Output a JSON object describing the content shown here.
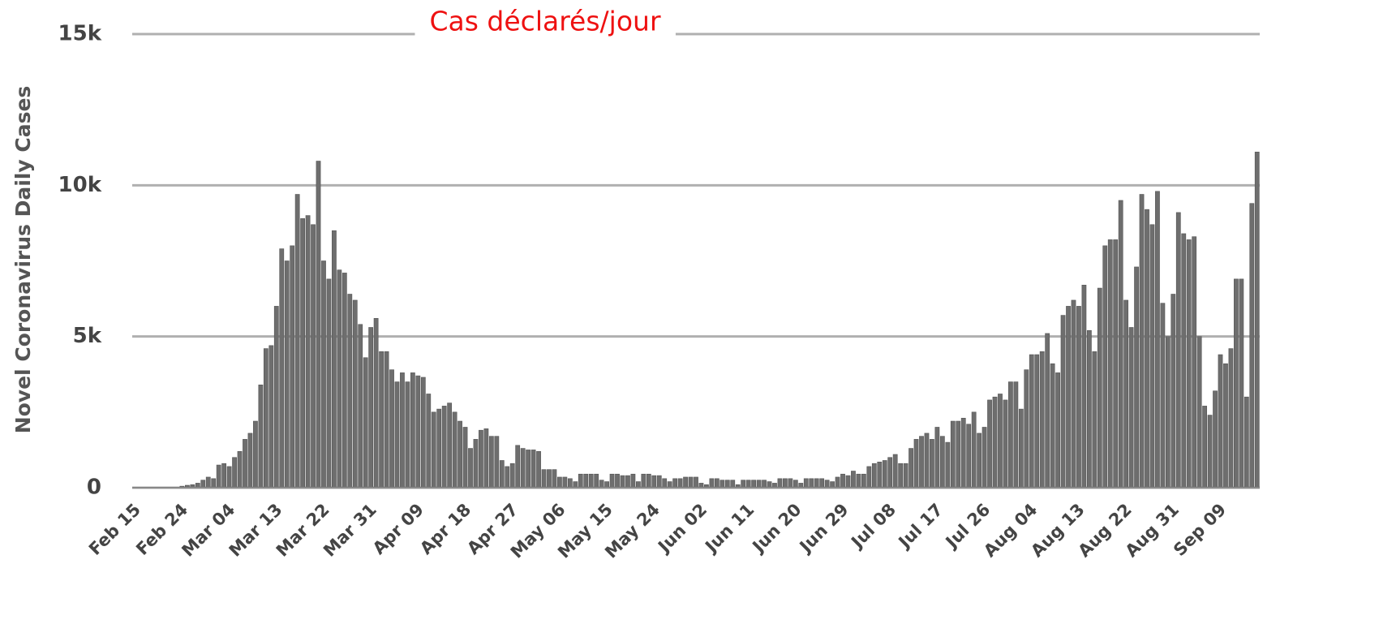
{
  "chart_data": {
    "type": "bar",
    "title": "Cas déclarés/jour",
    "y_label": "Novel Coronavirus Daily Cases",
    "categories": [
      "Feb 15",
      null,
      null,
      null,
      null,
      null,
      null,
      null,
      null,
      "Feb 24",
      null,
      null,
      null,
      null,
      null,
      null,
      null,
      null,
      "Mar 04",
      null,
      null,
      null,
      null,
      null,
      null,
      null,
      null,
      "Mar 13",
      null,
      null,
      null,
      null,
      null,
      null,
      null,
      null,
      "Mar 22",
      null,
      null,
      null,
      null,
      null,
      null,
      null,
      null,
      "Mar 31",
      null,
      null,
      null,
      null,
      null,
      null,
      null,
      null,
      "Apr 09",
      null,
      null,
      null,
      null,
      null,
      null,
      null,
      null,
      "Apr 18",
      null,
      null,
      null,
      null,
      null,
      null,
      null,
      null,
      "Apr 27",
      null,
      null,
      null,
      null,
      null,
      null,
      null,
      null,
      "May 06",
      null,
      null,
      null,
      null,
      null,
      null,
      null,
      null,
      "May 15",
      null,
      null,
      null,
      null,
      null,
      null,
      null,
      null,
      "May 24",
      null,
      null,
      null,
      null,
      null,
      null,
      null,
      null,
      "Jun 02",
      null,
      null,
      null,
      null,
      null,
      null,
      null,
      null,
      "Jun 11",
      null,
      null,
      null,
      null,
      null,
      null,
      null,
      null,
      "Jun 20",
      null,
      null,
      null,
      null,
      null,
      null,
      null,
      null,
      "Jun 29",
      null,
      null,
      null,
      null,
      null,
      null,
      null,
      null,
      "Jul 08",
      null,
      null,
      null,
      null,
      null,
      null,
      null,
      null,
      "Jul 17",
      null,
      null,
      null,
      null,
      null,
      null,
      null,
      null,
      "Jul 26",
      null,
      null,
      null,
      null,
      null,
      null,
      null,
      null,
      "Aug 04",
      null,
      null,
      null,
      null,
      null,
      null,
      null,
      null,
      "Aug 13",
      null,
      null,
      null,
      null,
      null,
      null,
      null,
      null,
      "Aug 22",
      null,
      null,
      null,
      null,
      null,
      null,
      null,
      null,
      "Aug 31",
      null,
      null,
      null,
      null,
      null,
      null,
      null,
      null,
      "Sep 09",
      null,
      null,
      null,
      null,
      null,
      null,
      null
    ],
    "values": [
      0,
      0,
      0,
      0,
      0,
      0,
      0,
      0,
      0,
      50,
      80,
      100,
      150,
      250,
      350,
      300,
      750,
      800,
      700,
      1000,
      1200,
      1600,
      1800,
      2200,
      3400,
      4600,
      4700,
      6000,
      7900,
      7500,
      8000,
      9700,
      8900,
      9000,
      8700,
      10800,
      7500,
      6900,
      8500,
      7200,
      7100,
      6400,
      6200,
      5400,
      4300,
      5300,
      5600,
      4500,
      4500,
      3900,
      3500,
      3800,
      3500,
      3800,
      3700,
      3650,
      3100,
      2500,
      2600,
      2700,
      2800,
      2500,
      2200,
      2000,
      1300,
      1600,
      1900,
      1950,
      1700,
      1700,
      900,
      700,
      800,
      1400,
      1300,
      1250,
      1250,
      1200,
      600,
      600,
      600,
      350,
      350,
      300,
      200,
      450,
      450,
      450,
      450,
      250,
      200,
      450,
      450,
      400,
      400,
      450,
      200,
      450,
      450,
      400,
      400,
      300,
      200,
      300,
      300,
      350,
      350,
      350,
      150,
      100,
      300,
      300,
      250,
      250,
      250,
      100,
      250,
      250,
      250,
      250,
      250,
      200,
      150,
      300,
      300,
      300,
      250,
      150,
      300,
      300,
      300,
      300,
      250,
      200,
      350,
      450,
      400,
      550,
      450,
      450,
      700,
      800,
      850,
      900,
      1000,
      1100,
      800,
      800,
      1300,
      1600,
      1700,
      1800,
      1600,
      2000,
      1700,
      1500,
      2200,
      2200,
      2300,
      2100,
      2500,
      1800,
      2000,
      2900,
      3000,
      3100,
      2900,
      3500,
      3500,
      2600,
      3900,
      4400,
      4400,
      4500,
      5100,
      4100,
      3800,
      5700,
      6000,
      6200,
      6000,
      6700,
      5200,
      4500,
      6600,
      8000,
      8200,
      8200,
      9500,
      6200,
      5300,
      7300,
      9700,
      9200,
      8700,
      9800,
      6100,
      5000,
      6400,
      9100,
      8400,
      8200,
      8300,
      5000,
      2700,
      2400,
      3200,
      4400,
      4100,
      4600,
      6900,
      6900,
      3000,
      9400,
      11100
    ],
    "color": "#6e6e6e",
    "ylim": [
      0,
      15000
    ],
    "yticks": [
      0,
      {
        "value": 5000,
        "label": "5k"
      },
      {
        "value": 10000,
        "label": "10k"
      },
      {
        "value": 15000,
        "label": "15k"
      }
    ],
    "grid": true
  }
}
